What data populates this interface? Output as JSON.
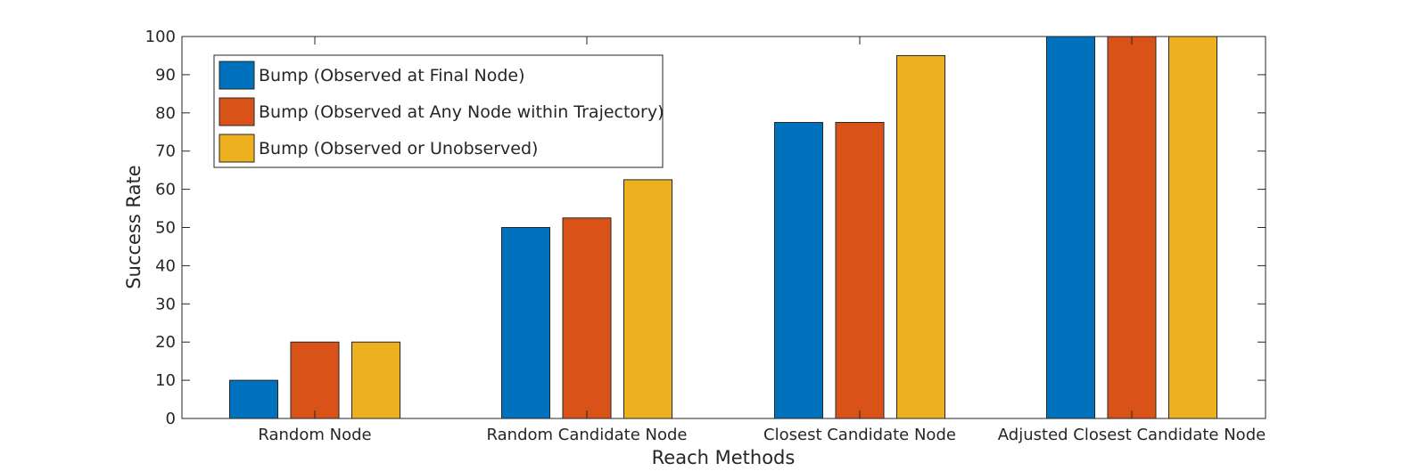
{
  "chart_data": {
    "type": "bar",
    "title": "",
    "xlabel": "Reach Methods",
    "ylabel": "Success Rate",
    "ylim": [
      0,
      100
    ],
    "yticks": [
      0,
      10,
      20,
      30,
      40,
      50,
      60,
      70,
      80,
      90,
      100
    ],
    "categories": [
      "Random Node",
      "Random Candidate Node",
      "Closest Candidate Node",
      "Adjusted Closest Candidate Node"
    ],
    "series": [
      {
        "name": "Bump (Observed at Final Node)",
        "color": "#0072BD",
        "values": [
          10,
          50,
          77.5,
          100
        ]
      },
      {
        "name": "Bump (Observed at Any Node within Trajectory)",
        "color": "#D95319",
        "values": [
          20,
          52.5,
          77.5,
          100
        ]
      },
      {
        "name": "Bump (Observed or Unobserved)",
        "color": "#EDB120",
        "values": [
          20,
          62.5,
          95,
          100
        ]
      }
    ],
    "legend_position": "top-left",
    "grid": false
  }
}
